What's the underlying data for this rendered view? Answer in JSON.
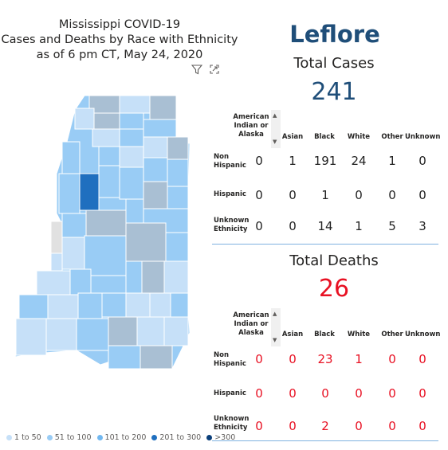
{
  "title": {
    "line1": "Mississippi COVID-19",
    "line2": "Cases and Deaths by Race with Ethnicity",
    "line3": "as of 6 pm CT, May 24, 2020"
  },
  "icons": [
    "filter-icon",
    "focus-mode-icon"
  ],
  "county": "Leflore",
  "colors": {
    "accent_blue": "#1f4e79",
    "death_red": "#e81123",
    "range_1_50": "#c6e0f8",
    "range_51_100": "#99ccf5",
    "range_101_200": "#72b8f0",
    "range_201_300": "#1f6fbf",
    "range_300_plus": "#0b3f7a",
    "selected": "#1f6fbf"
  },
  "legend": [
    "1 to 50",
    "51 to 100",
    "101 to 200",
    "201 to 300",
    ">300"
  ],
  "cases": {
    "title": "Total Cases",
    "total": "241",
    "columns": [
      "American Indian or Alaska",
      "Asian",
      "Black",
      "White",
      "Other",
      "Unknown"
    ],
    "rows": [
      {
        "label": "Non Hispanic",
        "values": [
          "0",
          "1",
          "191",
          "24",
          "1",
          "0"
        ]
      },
      {
        "label": "Hispanic",
        "values": [
          "0",
          "0",
          "1",
          "0",
          "0",
          "0"
        ]
      },
      {
        "label": "Unknown Ethnicity",
        "values": [
          "0",
          "0",
          "14",
          "1",
          "5",
          "3"
        ]
      }
    ]
  },
  "deaths": {
    "title": "Total Deaths",
    "total": "26",
    "columns": [
      "American Indian or Alaska",
      "Asian",
      "Black",
      "White",
      "Other",
      "Unknown"
    ],
    "rows": [
      {
        "label": "Non Hispanic",
        "values": [
          "0",
          "0",
          "23",
          "1",
          "0",
          "0"
        ]
      },
      {
        "label": "Hispanic",
        "values": [
          "0",
          "0",
          "0",
          "0",
          "0",
          "0"
        ]
      },
      {
        "label": "Unknown Ethnicity",
        "values": [
          "0",
          "0",
          "2",
          "0",
          "0",
          "0"
        ]
      }
    ]
  }
}
